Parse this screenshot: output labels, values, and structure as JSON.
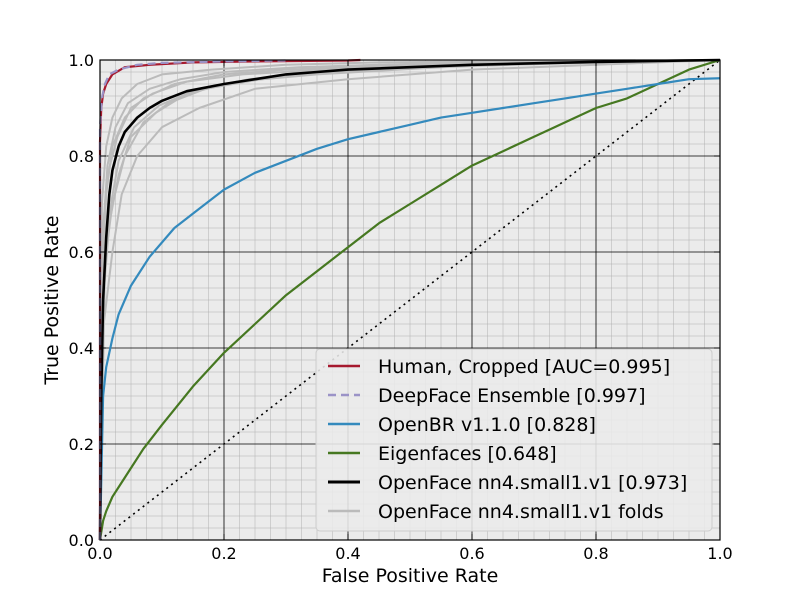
{
  "chart_data": {
    "type": "line",
    "xlabel": "False Positive Rate",
    "ylabel": "True Positive Rate",
    "xlim": [
      0,
      1
    ],
    "ylim": [
      0,
      1
    ],
    "xticks": [
      "0.0",
      "0.2",
      "0.4",
      "0.6",
      "0.8",
      "1.0"
    ],
    "yticks": [
      "0.0",
      "0.2",
      "0.4",
      "0.6",
      "0.8",
      "1.0"
    ],
    "grid": "major and minor",
    "background": "#ebebeb",
    "legend_position": "lower-right",
    "series": [
      {
        "name": "Human, Cropped [AUC=0.995]",
        "color": "#a6192e",
        "style": "solid",
        "x": [
          0,
          0,
          0.002,
          0.005,
          0.01,
          0.02,
          0.04,
          0.08,
          0.15,
          0.25,
          0.4,
          0.42
        ],
        "y": [
          0,
          0.83,
          0.9,
          0.93,
          0.95,
          0.97,
          0.985,
          0.99,
          0.995,
          0.997,
          0.999,
          1.0
        ]
      },
      {
        "name": "DeepFace Ensemble [0.997]",
        "color": "#9b93c7",
        "style": "dashed",
        "x": [
          0,
          0,
          0.003,
          0.008,
          0.015,
          0.03,
          0.06,
          0.1,
          0.2,
          0.3
        ],
        "y": [
          0,
          0.86,
          0.92,
          0.95,
          0.97,
          0.98,
          0.99,
          0.994,
          0.997,
          0.999
        ]
      },
      {
        "name": "OpenBR v1.1.0 [0.828]",
        "color": "#348abd",
        "style": "solid",
        "x": [
          0,
          0.005,
          0.01,
          0.02,
          0.03,
          0.05,
          0.08,
          0.12,
          0.16,
          0.2,
          0.25,
          0.3,
          0.35,
          0.4,
          0.45,
          0.5,
          0.55,
          0.6,
          0.65,
          0.7,
          0.75,
          0.8,
          0.85,
          0.9,
          0.95,
          1.0
        ],
        "y": [
          0,
          0.3,
          0.36,
          0.42,
          0.47,
          0.53,
          0.59,
          0.65,
          0.69,
          0.73,
          0.765,
          0.79,
          0.815,
          0.835,
          0.85,
          0.865,
          0.88,
          0.89,
          0.9,
          0.91,
          0.92,
          0.93,
          0.94,
          0.95,
          0.96,
          0.962
        ]
      },
      {
        "name": "Eigenfaces [0.648]",
        "color": "#467821",
        "style": "solid",
        "x": [
          0,
          0.005,
          0.01,
          0.02,
          0.04,
          0.07,
          0.1,
          0.15,
          0.2,
          0.25,
          0.3,
          0.35,
          0.4,
          0.45,
          0.5,
          0.55,
          0.6,
          0.65,
          0.7,
          0.75,
          0.8,
          0.85,
          0.9,
          0.95,
          1.0
        ],
        "y": [
          0,
          0.04,
          0.06,
          0.09,
          0.13,
          0.19,
          0.24,
          0.32,
          0.39,
          0.45,
          0.51,
          0.56,
          0.61,
          0.66,
          0.7,
          0.74,
          0.78,
          0.81,
          0.84,
          0.87,
          0.9,
          0.92,
          0.95,
          0.98,
          1.0
        ]
      },
      {
        "name": "OpenFace nn4.small1.v1 [0.973]",
        "color": "#000000",
        "style": "solid",
        "x": [
          0,
          0.002,
          0.005,
          0.01,
          0.015,
          0.02,
          0.03,
          0.04,
          0.06,
          0.08,
          0.1,
          0.14,
          0.2,
          0.25,
          0.3,
          0.35,
          0.4,
          0.5,
          0.6,
          0.7,
          0.8,
          0.9,
          1.0
        ],
        "y": [
          0,
          0.3,
          0.5,
          0.63,
          0.72,
          0.77,
          0.82,
          0.85,
          0.88,
          0.9,
          0.915,
          0.935,
          0.95,
          0.96,
          0.97,
          0.975,
          0.98,
          0.985,
          0.99,
          0.993,
          0.996,
          0.998,
          1.0
        ]
      },
      {
        "name": "OpenFace nn4.small1.v1 folds",
        "color": "#bbbbbb",
        "style": "solid",
        "folds": [
          {
            "x": [
              0,
              0.003,
              0.01,
              0.02,
              0.04,
              0.07,
              0.12,
              0.2,
              0.3,
              0.5,
              0.7,
              1.0
            ],
            "y": [
              0,
              0.55,
              0.72,
              0.82,
              0.88,
              0.92,
              0.95,
              0.97,
              0.98,
              0.99,
              0.995,
              1.0
            ]
          },
          {
            "x": [
              0,
              0.005,
              0.015,
              0.03,
              0.05,
              0.09,
              0.14,
              0.22,
              0.35,
              0.55,
              0.75,
              1.0
            ],
            "y": [
              0,
              0.5,
              0.66,
              0.76,
              0.84,
              0.89,
              0.93,
              0.955,
              0.97,
              0.985,
              0.995,
              1.0
            ]
          },
          {
            "x": [
              0,
              0.004,
              0.012,
              0.025,
              0.045,
              0.08,
              0.13,
              0.2,
              0.32,
              0.5,
              0.72,
              1.0
            ],
            "y": [
              0,
              0.62,
              0.78,
              0.86,
              0.91,
              0.94,
              0.96,
              0.975,
              0.985,
              0.992,
              0.997,
              1.0
            ]
          },
          {
            "x": [
              0,
              0.006,
              0.02,
              0.035,
              0.06,
              0.1,
              0.16,
              0.25,
              0.4,
              0.6,
              0.8,
              1.0
            ],
            "y": [
              0,
              0.45,
              0.6,
              0.72,
              0.8,
              0.86,
              0.9,
              0.94,
              0.96,
              0.98,
              0.99,
              1.0
            ]
          },
          {
            "x": [
              0,
              0.003,
              0.01,
              0.02,
              0.035,
              0.06,
              0.1,
              0.18,
              0.3,
              0.45,
              0.7,
              1.0
            ],
            "y": [
              0,
              0.7,
              0.82,
              0.88,
              0.92,
              0.95,
              0.97,
              0.98,
              0.99,
              0.995,
              0.998,
              1.0
            ]
          },
          {
            "x": [
              0,
              0.008,
              0.02,
              0.04,
              0.07,
              0.11,
              0.17,
              0.26,
              0.38,
              0.55,
              0.75,
              1.0
            ],
            "y": [
              0,
              0.58,
              0.7,
              0.8,
              0.87,
              0.91,
              0.94,
              0.96,
              0.975,
              0.988,
              0.995,
              1.0
            ]
          },
          {
            "x": [
              0,
              0.005,
              0.012,
              0.028,
              0.05,
              0.085,
              0.14,
              0.23,
              0.36,
              0.55,
              0.8,
              1.0
            ],
            "y": [
              0,
              0.65,
              0.76,
              0.84,
              0.9,
              0.93,
              0.955,
              0.97,
              0.98,
              0.99,
              0.996,
              1.0
            ]
          },
          {
            "x": [
              0,
              0.004,
              0.015,
              0.03,
              0.055,
              0.095,
              0.15,
              0.24,
              0.37,
              0.6,
              0.85,
              1.0
            ],
            "y": [
              0,
              0.52,
              0.68,
              0.79,
              0.86,
              0.905,
              0.935,
              0.96,
              0.975,
              0.988,
              0.996,
              1.0
            ]
          }
        ]
      }
    ],
    "chance_line": {
      "color": "#000000",
      "style": "dotted",
      "x": [
        0,
        1
      ],
      "y": [
        0,
        1
      ]
    }
  }
}
